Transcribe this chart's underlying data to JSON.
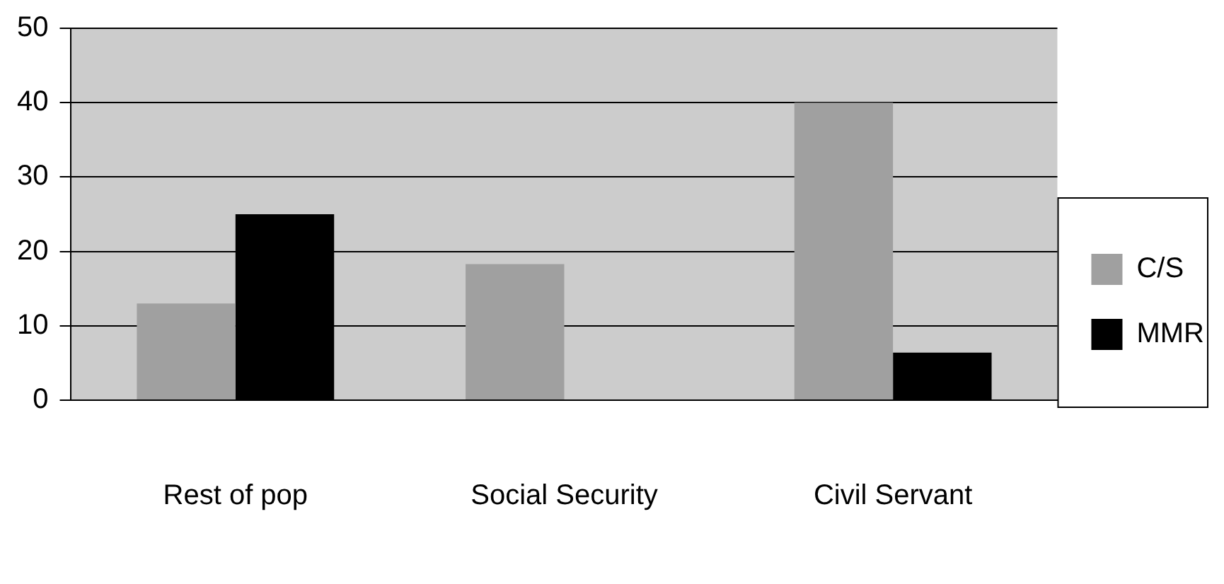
{
  "chart_data": {
    "type": "bar",
    "categories": [
      "Rest of pop",
      "Social Security",
      "Civil Servant"
    ],
    "series": [
      {
        "name": "C/S",
        "color": "#a0a0a0",
        "values": [
          13,
          18.3,
          40
        ]
      },
      {
        "name": "MMR",
        "color": "#000000",
        "values": [
          25,
          null,
          6.4
        ]
      }
    ],
    "ylim": [
      0,
      50
    ],
    "yticks": [
      0,
      10,
      20,
      30,
      40,
      50
    ],
    "grid": "y",
    "legend": "right"
  }
}
